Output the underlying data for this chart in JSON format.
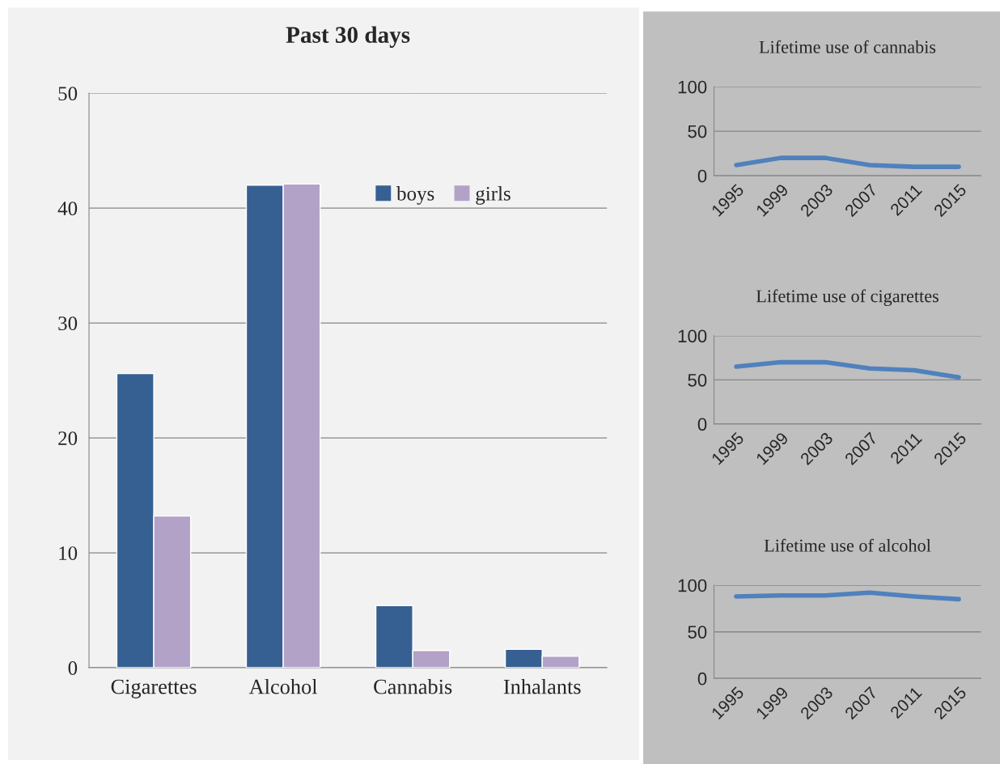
{
  "chart_data": [
    {
      "type": "bar",
      "title": "Past 30 days",
      "categories": [
        "Cigarettes",
        "Alcohol",
        "Cannabis",
        "Inhalants"
      ],
      "series": [
        {
          "name": "boys",
          "color": "#366092",
          "values": [
            25.6,
            42.0,
            5.4,
            1.6
          ]
        },
        {
          "name": "girls",
          "color": "#b3a2c7",
          "values": [
            13.2,
            42.1,
            1.5,
            1.0
          ]
        }
      ],
      "ylim": [
        0,
        50
      ],
      "yticks": [
        0,
        10,
        20,
        30,
        40,
        50
      ],
      "grid": "y",
      "legend": "top right"
    },
    {
      "type": "line",
      "title": "Lifetime use of cannabis",
      "categories": [
        "1995",
        "1999",
        "2003",
        "2007",
        "2011",
        "2015"
      ],
      "series": [
        {
          "color": "#4f81bd",
          "values": [
            12,
            20,
            20,
            12,
            10,
            10
          ]
        }
      ],
      "ylim": [
        0,
        100
      ],
      "yticks": [
        0,
        50,
        100
      ],
      "grid": "y"
    },
    {
      "type": "line",
      "title": "Lifetime use of cigarettes",
      "categories": [
        "1995",
        "1999",
        "2003",
        "2007",
        "2011",
        "2015"
      ],
      "series": [
        {
          "color": "#4f81bd",
          "values": [
            65,
            70,
            70,
            63,
            61,
            53
          ]
        }
      ],
      "ylim": [
        0,
        100
      ],
      "yticks": [
        0,
        50,
        100
      ],
      "grid": "y"
    },
    {
      "type": "line",
      "title": "Lifetime use of alcohol",
      "categories": [
        "1995",
        "1999",
        "2003",
        "2007",
        "2011",
        "2015"
      ],
      "series": [
        {
          "color": "#4f81bd",
          "values": [
            88,
            89,
            89,
            92,
            88,
            85
          ]
        }
      ],
      "ylim": [
        0,
        100
      ],
      "yticks": [
        0,
        50,
        100
      ],
      "grid": "y"
    }
  ]
}
